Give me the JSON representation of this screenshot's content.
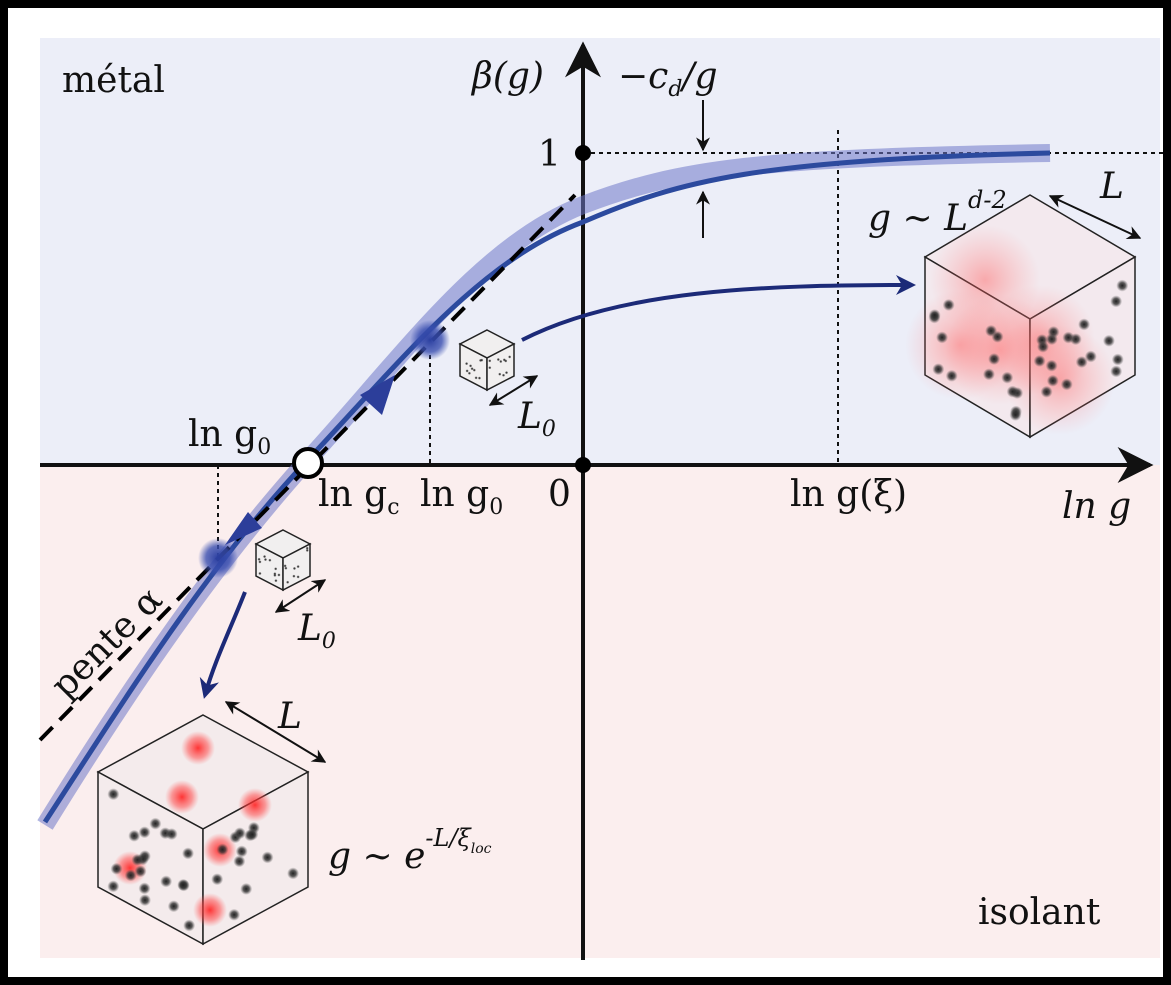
{
  "regions": {
    "metal": "métal",
    "insulator": "isolant"
  },
  "axes": {
    "y_label": "β(g)",
    "x_label": "ln g",
    "tick_one": "1",
    "origin": "0"
  },
  "marks": {
    "ln_g0_left": {
      "text": "ln g",
      "sub": "0"
    },
    "ln_gc": {
      "text": "ln g",
      "sub": "c"
    },
    "ln_g0_right": {
      "text": "ln g",
      "sub": "0"
    },
    "ln_g_xi": "ln g(ξ)",
    "cd": {
      "text": "−c",
      "sub": "d",
      "rest": "/g"
    }
  },
  "cubes": {
    "small_top": {
      "text": "L",
      "sub": "0"
    },
    "small_bottom": {
      "text": "L",
      "sub": "0"
    },
    "large_top": {
      "size": "L",
      "law": "g ∼ L",
      "exp": "d-2"
    },
    "large_bottom": {
      "size": "L",
      "law": "g ∼ e",
      "exp": "-L/ξ",
      "exp_sub": "loc"
    }
  },
  "slope": "pente α"
}
